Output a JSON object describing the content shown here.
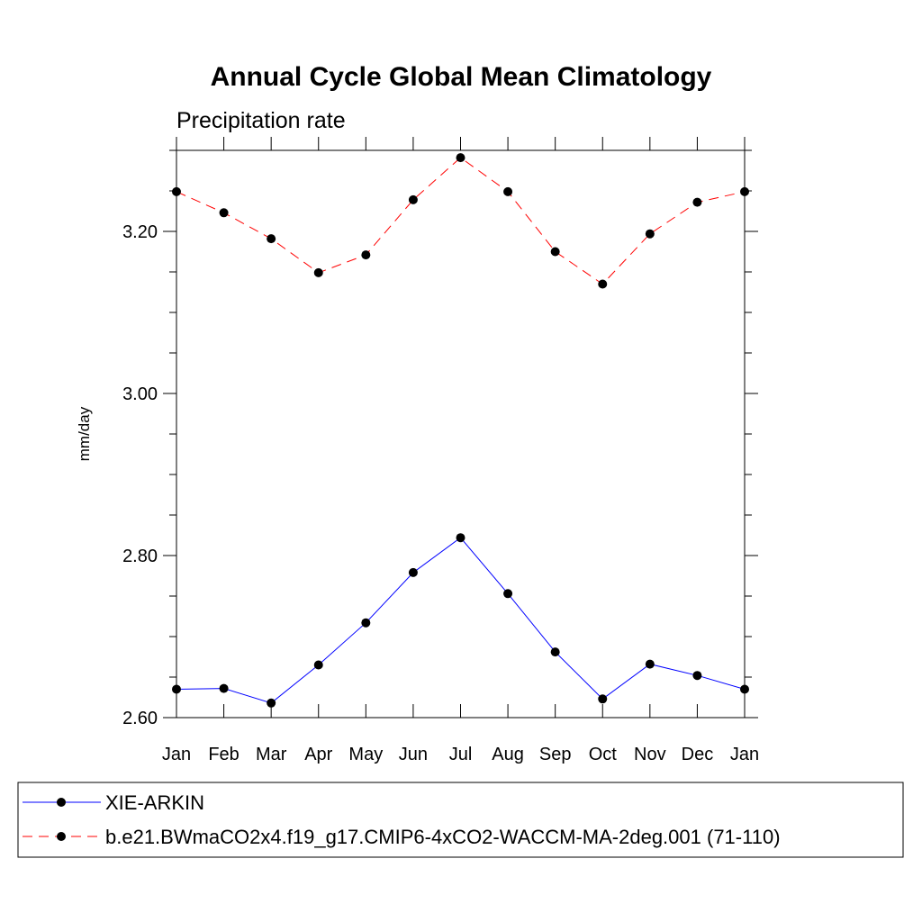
{
  "chart_data": {
    "type": "line",
    "title": "Annual Cycle Global Mean Climatology",
    "subtitle": "Precipitation rate",
    "xlabel": "",
    "ylabel": "mm/day",
    "categories": [
      "Jan",
      "Feb",
      "Mar",
      "Apr",
      "May",
      "Jun",
      "Jul",
      "Aug",
      "Sep",
      "Oct",
      "Nov",
      "Dec",
      "Jan"
    ],
    "ylim": [
      2.6,
      3.3
    ],
    "yticks": [
      2.6,
      2.8,
      3.0,
      3.2
    ],
    "ytick_labels": [
      "2.60",
      "2.80",
      "3.00",
      "3.20"
    ],
    "y_minor_step": 0.05,
    "grid": false,
    "legend_position": "bottom",
    "series": [
      {
        "name": "XIE-ARKIN",
        "color": "#0000ff",
        "dash": "solid",
        "marker": "filled-circle",
        "values": [
          2.635,
          2.636,
          2.618,
          2.665,
          2.717,
          2.779,
          2.822,
          2.753,
          2.681,
          2.623,
          2.666,
          2.652,
          2.635
        ]
      },
      {
        "name": "b.e21.BWmaCO2x4.f19_g17.CMIP6-4xCO2-WACCM-MA-2deg.001 (71-110)",
        "color": "#ff0000",
        "dash": "dashed",
        "marker": "filled-circle",
        "values": [
          3.249,
          3.223,
          3.191,
          3.149,
          3.171,
          3.239,
          3.291,
          3.249,
          3.175,
          3.135,
          3.197,
          3.236,
          3.249
        ]
      }
    ]
  }
}
